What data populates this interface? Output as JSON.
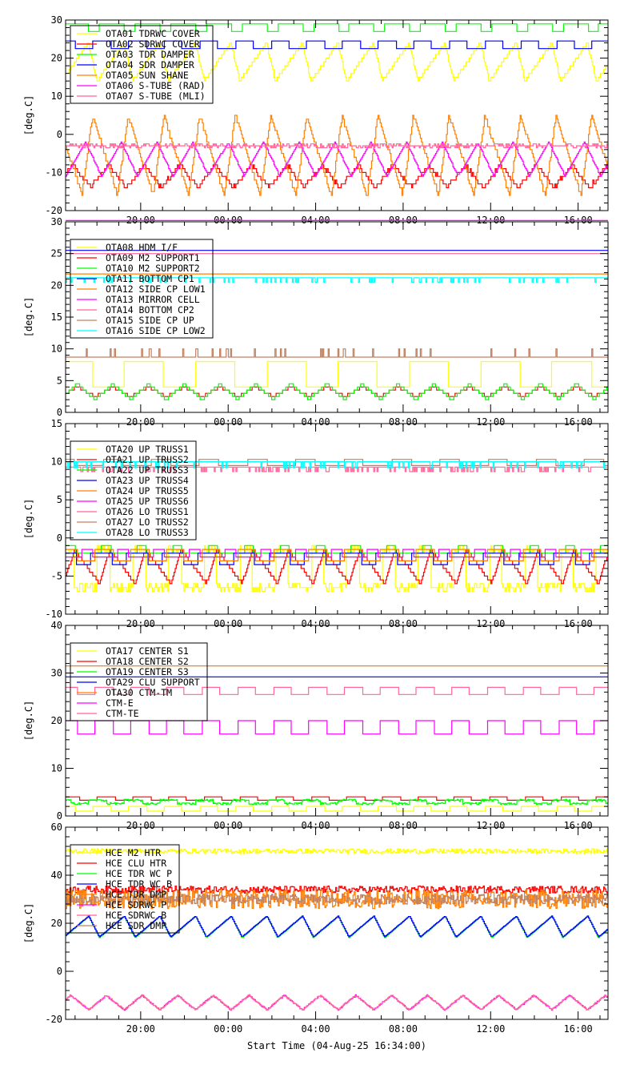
{
  "chart_data": {
    "type": "line",
    "xlabel": "Start Time (04-Aug-25 16:34:00)",
    "x_unit": "hours since start",
    "xlim": [
      0,
      24.8
    ],
    "x_ticks": [
      {
        "h": 3.433,
        "label": "20:00"
      },
      {
        "h": 7.433,
        "label": "00:00"
      },
      {
        "h": 11.433,
        "label": "04:00"
      },
      {
        "h": 15.433,
        "label": "08:00"
      },
      {
        "h": 19.433,
        "label": "12:00"
      },
      {
        "h": 23.433,
        "label": "16:00"
      }
    ],
    "panels": [
      {
        "ylabel": "[deg.C]",
        "ylim": [
          -20,
          30
        ],
        "yticks": [
          -20,
          -10,
          0,
          10,
          20,
          30
        ],
        "ytick_labels": [
          "-20",
          "-10",
          "0",
          "10",
          "20",
          "30"
        ],
        "series": [
          {
            "name": "OTA01 TDRWC COVER",
            "color": "#ffff00",
            "shape": "tri",
            "lo": 14,
            "hi": 24,
            "period_h": 1.63,
            "phase_h": 0.2,
            "rise": 0.75,
            "step": 1,
            "noise": 0
          },
          {
            "name": "OTA02 SDRWC COVER",
            "color": "#ff0000",
            "shape": "tri",
            "lo": -14,
            "hi": -8,
            "period_h": 1.63,
            "phase_h": 0.5,
            "rise": 0.5,
            "step": 1,
            "noise": 0.5
          },
          {
            "name": "OTA03 TDR DAMPER",
            "color": "#00ff00",
            "shape": "square",
            "lo": 27,
            "hi": 29,
            "period_h": 1.63,
            "phase_h": 0.1,
            "duty": 0.7,
            "step": 1,
            "noise": 0
          },
          {
            "name": "OTA04 SDR DAMPER",
            "color": "#0000ff",
            "shape": "square",
            "lo": 22.5,
            "hi": 24.5,
            "period_h": 1.63,
            "phase_h": 0.4,
            "duty": 0.5,
            "step": 0.5,
            "noise": 0
          },
          {
            "name": "OTA05 SUN SHANE",
            "color": "#ff8000",
            "shape": "tri",
            "lo": -16,
            "hi": 5,
            "period_h": 1.63,
            "phase_h": 0.9,
            "rise": 0.3,
            "step": 1,
            "noise": 0.5
          },
          {
            "name": "OTA06 S-TUBE (RAD)",
            "color": "#ff00ff",
            "shape": "tri",
            "lo": -11,
            "hi": -2,
            "period_h": 1.63,
            "phase_h": 0.0,
            "rise": 0.55,
            "step": 0.5,
            "noise": 0
          },
          {
            "name": "OTA07 S-TUBE (MLI)",
            "color": "#ff6699",
            "shape": "flat",
            "lo": -3,
            "hi": -3,
            "step": 0.5,
            "noise": 0.5
          }
        ]
      },
      {
        "ylabel": "[deg.C]",
        "ylim": [
          0,
          30
        ],
        "yticks": [
          0,
          5,
          10,
          15,
          20,
          25,
          30
        ],
        "ytick_labels": [
          "0",
          "5",
          "10",
          "15",
          "20",
          "25",
          "30"
        ],
        "series": [
          {
            "name": "OTA08 HDM I/F",
            "color": "#ffff00",
            "shape": "square",
            "lo": 4,
            "hi": 8,
            "period_h": 3.26,
            "phase_h": 0.6,
            "duty": 0.55,
            "step": 1,
            "noise": 0.5
          },
          {
            "name": "OTA09 M2 SUPPORT1",
            "color": "#ff0000",
            "shape": "tri",
            "lo": 2.5,
            "hi": 4,
            "period_h": 1.63,
            "phase_h": 0.3,
            "rise": 0.5,
            "step": 0.5,
            "noise": 0
          },
          {
            "name": "OTA10 M2 SUPPORT2",
            "color": "#00ff00",
            "shape": "tri",
            "lo": 2,
            "hi": 4.5,
            "period_h": 1.63,
            "phase_h": 0.3,
            "rise": 0.5,
            "step": 0.5,
            "noise": 0
          },
          {
            "name": "OTA11 BOTTOM CP1",
            "color": "#0000ff",
            "shape": "flat",
            "lo": 25.5,
            "hi": 25.5,
            "step": 0.1,
            "noise": 0
          },
          {
            "name": "OTA12 SIDE CP LOW1",
            "color": "#ff8000",
            "shape": "flat",
            "lo": 21.8,
            "hi": 21.8,
            "step": 0.1,
            "noise": 0
          },
          {
            "name": "OTA13 MIRROR CELL",
            "color": "#ff00ff",
            "shape": "flat",
            "lo": 30.2,
            "hi": 30.2,
            "step": 0.1,
            "noise": 0
          },
          {
            "name": "OTA14 BOTTOM CP2",
            "color": "#ff6699",
            "shape": "flat",
            "lo": 25,
            "hi": 25,
            "step": 0.1,
            "noise": 0
          },
          {
            "name": "OTA15 SIDE CP UP",
            "color": "#c08060",
            "shape": "flat",
            "lo": 8.7,
            "hi": 8.7,
            "step": 0.1,
            "noise": 0,
            "spike_to": 10,
            "spike_rate": 0.08
          },
          {
            "name": "OTA16 SIDE CP LOW2",
            "color": "#00ffff",
            "shape": "flat",
            "lo": 21.2,
            "hi": 21.2,
            "step": 0.1,
            "noise": 0,
            "spike_to": 20.5,
            "spike_rate": 0.15
          }
        ]
      },
      {
        "ylabel": "[deg.C]",
        "ylim": [
          -10,
          15
        ],
        "yticks": [
          -10,
          -5,
          0,
          5,
          10,
          15
        ],
        "ytick_labels": [
          "-10",
          "-5",
          "0",
          "5",
          "10",
          "15"
        ],
        "series": [
          {
            "name": "OTA20 UP TRUSS1",
            "color": "#ffff00",
            "shape": "square",
            "lo": -6.5,
            "hi": -1.5,
            "period_h": 1.63,
            "phase_h": 0.2,
            "duty": 0.35,
            "step": 0.5,
            "noise": 0.5
          },
          {
            "name": "OTA21 UP TRUSS2",
            "color": "#ff0000",
            "shape": "tri",
            "lo": -6,
            "hi": -1.5,
            "period_h": 1.63,
            "phase_h": 0.1,
            "rise": 0.3,
            "step": 0.5,
            "noise": 0
          },
          {
            "name": "OTA22 UP TRUSS3",
            "color": "#00ff00",
            "shape": "square",
            "lo": -2,
            "hi": -1,
            "period_h": 1.63,
            "phase_h": 0.0,
            "duty": 0.25,
            "step": 0.5,
            "noise": 0
          },
          {
            "name": "OTA23 UP TRUSS4",
            "color": "#0000ff",
            "shape": "square",
            "lo": -3.5,
            "hi": -2,
            "period_h": 1.63,
            "phase_h": 0.5,
            "duty": 0.6,
            "step": 0.5,
            "noise": 0
          },
          {
            "name": "OTA24 UP TRUSS5",
            "color": "#ff8000",
            "shape": "square",
            "lo": -3,
            "hi": -1.5,
            "period_h": 1.63,
            "phase_h": 0.3,
            "duty": 0.5,
            "step": 0.5,
            "noise": 0
          },
          {
            "name": "OTA25 UP TRUSS6",
            "color": "#ff00ff",
            "shape": "square",
            "lo": -2.5,
            "hi": -1.5,
            "period_h": 1.63,
            "phase_h": 0.9,
            "duty": 0.3,
            "step": 0.5,
            "noise": 0
          },
          {
            "name": "OTA26 LO TRUSS1",
            "color": "#ff6699",
            "shape": "flat",
            "lo": 9.3,
            "hi": 9.3,
            "step": 0.1,
            "noise": 0,
            "spike_to": 8.7,
            "spike_rate": 0.2
          },
          {
            "name": "OTA27 LO TRUSS2",
            "color": "#c08060",
            "shape": "square",
            "lo": 9.5,
            "hi": 10.3,
            "period_h": 2.2,
            "phase_h": 0.5,
            "duty": 0.4,
            "step": 0.1,
            "noise": 0
          },
          {
            "name": "OTA28 LO TRUSS3",
            "color": "#00ffff",
            "shape": "flat",
            "lo": 10,
            "hi": 10,
            "step": 0.1,
            "noise": 0,
            "spike_to": 9.2,
            "spike_rate": 0.1
          }
        ]
      },
      {
        "ylabel": "[deg.C]",
        "ylim": [
          0,
          40
        ],
        "yticks": [
          0,
          10,
          20,
          30,
          40
        ],
        "ytick_labels": [
          "0",
          "10",
          "20",
          "30",
          "40"
        ],
        "series": [
          {
            "name": "OTA17 CENTER S1",
            "color": "#ffff00",
            "shape": "square",
            "lo": 0.8,
            "hi": 1.8,
            "period_h": 1.63,
            "phase_h": 0.4,
            "duty": 0.5,
            "step": 0.5,
            "noise": 0
          },
          {
            "name": "OTA18 CENTER S2",
            "color": "#ff0000",
            "shape": "square",
            "lo": 3.3,
            "hi": 4,
            "period_h": 1.63,
            "phase_h": 0.2,
            "duty": 0.5,
            "step": 0.1,
            "noise": 0
          },
          {
            "name": "OTA19 CENTER S3",
            "color": "#00ff00",
            "shape": "square",
            "lo": 2.6,
            "hi": 3.3,
            "period_h": 1.63,
            "phase_h": 0.6,
            "duty": 0.5,
            "step": 0.1,
            "noise": 0.2
          },
          {
            "name": "OTA29 CLU SUPPORT",
            "color": "#0000ff",
            "shape": "flat",
            "lo": 29.2,
            "hi": 29.2,
            "step": 0.1,
            "noise": 0
          },
          {
            "name": "OTA30 CTM-TM",
            "color": "#ff8000",
            "shape": "flat",
            "lo": 31.5,
            "hi": 31.5,
            "step": 0.1,
            "noise": 0
          },
          {
            "name": "CTM-E",
            "color": "#ff00ff",
            "shape": "square",
            "lo": 17.2,
            "hi": 20,
            "period_h": 1.63,
            "phase_h": 0.3,
            "duty": 0.5,
            "step": 0.1,
            "noise": 0
          },
          {
            "name": "CTM-TE",
            "color": "#ff6699",
            "shape": "square",
            "lo": 25.5,
            "hi": 27,
            "period_h": 1.63,
            "phase_h": 0.3,
            "duty": 0.5,
            "step": 0.1,
            "noise": 0
          }
        ]
      },
      {
        "ylabel": "[deg.C]",
        "ylim": [
          -20,
          60
        ],
        "yticks": [
          -20,
          0,
          20,
          40,
          60
        ],
        "ytick_labels": [
          "-20",
          "0",
          "20",
          "40",
          "60"
        ],
        "series": [
          {
            "name": "HCE M2 HTR",
            "color": "#ffff00",
            "shape": "flat",
            "lo": 50,
            "hi": 50,
            "step": 0.1,
            "noise": 1
          },
          {
            "name": "HCE CLU HTR",
            "color": "#ff0000",
            "shape": "flat",
            "lo": 34,
            "hi": 34,
            "step": 0.1,
            "noise": 1.5
          },
          {
            "name": "HCE TDR WC P",
            "color": "#00ff00",
            "shape": "tri",
            "lo": 14,
            "hi": 23,
            "period_h": 1.63,
            "phase_h": 0.1,
            "rise": 0.7,
            "step": 0.2,
            "noise": 0
          },
          {
            "name": "HCE TDR WC B",
            "color": "#0000ff",
            "shape": "tri",
            "lo": 14.3,
            "hi": 23,
            "period_h": 1.63,
            "phase_h": 0.1,
            "rise": 0.7,
            "step": 0.2,
            "noise": 0
          },
          {
            "name": "HCE TDR DMP",
            "color": "#ff8000",
            "shape": "flat",
            "lo": 30,
            "hi": 30,
            "step": 0.1,
            "noise": 4
          },
          {
            "name": "HCE SDRWC P",
            "color": "#ff00ff",
            "shape": "tri",
            "lo": -16,
            "hi": -10,
            "period_h": 1.63,
            "phase_h": 0.6,
            "rise": 0.5,
            "step": 0.2,
            "noise": 0.3
          },
          {
            "name": "HCE SDRWC B",
            "color": "#ff6699",
            "shape": "tri",
            "lo": -16,
            "hi": -10,
            "period_h": 1.63,
            "phase_h": 0.6,
            "rise": 0.5,
            "step": 0.2,
            "noise": 0.3
          },
          {
            "name": "HCE SDR DMP",
            "color": "#c08060",
            "shape": "flat",
            "lo": 30,
            "hi": 30,
            "step": 0.1,
            "noise": 2
          }
        ]
      }
    ]
  }
}
